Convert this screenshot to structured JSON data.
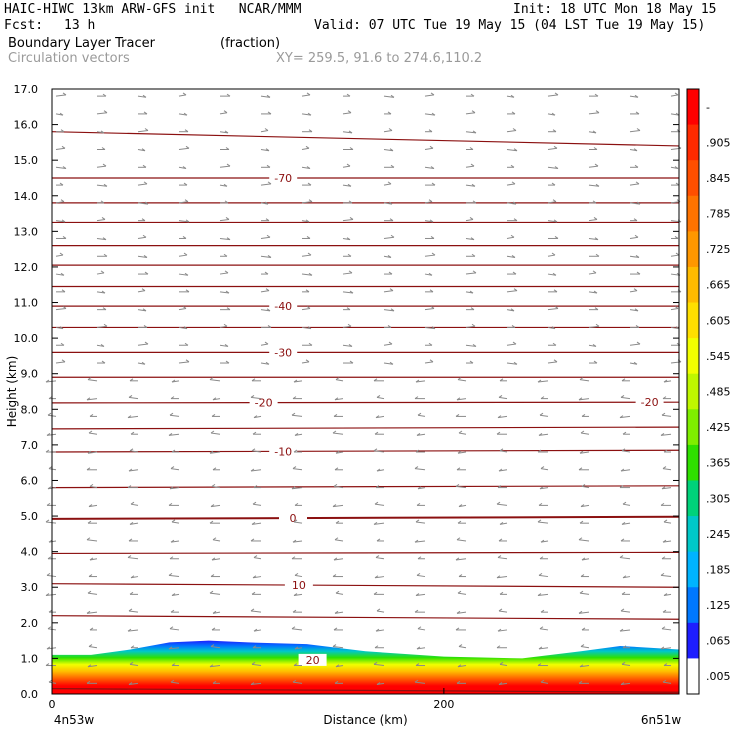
{
  "header": {
    "line1_left": "HAIC-HIWC 13km ARW-GFS init   NCAR/MMM",
    "line1_right": "Init: 18 UTC Mon 18 May 15",
    "fcst_label": "Fcst:",
    "fcst_value": "13 h",
    "valid": "Valid: 07 UTC Tue 19 May 15 (04 LST Tue 19 May 15)",
    "field_name": "Boundary Layer Tracer",
    "field_units": "(fraction)",
    "overlay_name": "Circulation vectors",
    "xy": "XY= 259.5, 91.6 to 274.6,110.2"
  },
  "chart_data": {
    "type": "heatmap",
    "title": "Boundary Layer Tracer",
    "units": "fraction",
    "xlabel": "Distance (km)",
    "ylabel": "Height (km)",
    "xlim": [
      0,
      320
    ],
    "ylim": [
      0.0,
      17.0
    ],
    "x_ticks": [
      0,
      200
    ],
    "x_tick_labels": [
      "0",
      "200"
    ],
    "x_end_labels": [
      "4n53w",
      "6n51w"
    ],
    "y_ticks": [
      "0.0",
      "1.0",
      "2.0",
      "3.0",
      "4.0",
      "5.0",
      "6.0",
      "7.0",
      "8.0",
      "9.0",
      "10.0",
      "11.0",
      "12.0",
      "13.0",
      "14.0",
      "15.0",
      "16.0",
      "17.0"
    ],
    "colorbar": {
      "labels": [
        "-",
        ".905",
        ".845",
        ".785",
        ".725",
        ".665",
        ".605",
        ".545",
        ".485",
        ".425",
        ".365",
        ".305",
        ".245",
        ".185",
        ".125",
        ".065",
        ".005"
      ],
      "colors": [
        "#ff0000",
        "#ff2a00",
        "#ff4f00",
        "#ff7300",
        "#ff9700",
        "#ffbb00",
        "#ffdf00",
        "#f2ff00",
        "#bff700",
        "#7fee00",
        "#2fe000",
        "#00d27a",
        "#00c8c8",
        "#00b4ff",
        "#0078ff",
        "#1e1eff",
        "#ffffff"
      ]
    },
    "tracer_top_km": [
      [
        0,
        1.1
      ],
      [
        20,
        1.1
      ],
      [
        40,
        1.25
      ],
      [
        60,
        1.45
      ],
      [
        80,
        1.5
      ],
      [
        100,
        1.45
      ],
      [
        130,
        1.4
      ],
      [
        160,
        1.2
      ],
      [
        200,
        1.05
      ],
      [
        240,
        1.0
      ],
      [
        270,
        1.2
      ],
      [
        290,
        1.35
      ],
      [
        320,
        1.25
      ]
    ],
    "isotherms": [
      {
        "value": 20,
        "label": "20",
        "height_km": [
          1.0,
          0.9
        ],
        "label_x": 133
      },
      {
        "value": 10,
        "label": "10",
        "height_km": [
          3.1,
          3.0
        ],
        "label_x": 126
      },
      {
        "value": 0,
        "label": "0",
        "height_km": [
          4.92,
          4.98
        ],
        "label_x": 123
      },
      {
        "value": -10,
        "label": "-10",
        "height_km": [
          6.8,
          6.85
        ],
        "label_x": 118
      },
      {
        "value": -20,
        "label": "-20",
        "height_km": [
          8.18,
          8.2
        ],
        "label_x": 108
      },
      {
        "value": -20,
        "label": "-20",
        "height_km": [
          8.18,
          8.2
        ],
        "label_x": 305
      },
      {
        "value": -30,
        "label": "-30",
        "height_km": [
          9.6,
          9.6
        ],
        "label_x": 118
      },
      {
        "value": -40,
        "label": "-40",
        "height_km": [
          10.9,
          10.9
        ],
        "label_x": 118
      },
      {
        "value": -70,
        "label": "-70",
        "height_km": [
          14.5,
          14.5
        ],
        "label_x": 118
      }
    ],
    "contour_lines_km": [
      [
        0.15,
        0.05
      ],
      [
        2.2,
        2.1
      ],
      [
        3.1,
        3.0
      ],
      [
        3.95,
        3.98
      ],
      [
        4.92,
        4.98
      ],
      [
        5.8,
        5.85
      ],
      [
        6.8,
        6.85
      ],
      [
        7.45,
        7.5
      ],
      [
        8.18,
        8.2
      ],
      [
        8.9,
        8.9
      ],
      [
        9.6,
        9.6
      ],
      [
        10.3,
        10.3
      ],
      [
        10.9,
        10.9
      ],
      [
        11.45,
        11.45
      ],
      [
        12.05,
        12.05
      ],
      [
        12.6,
        12.6
      ],
      [
        13.25,
        13.25
      ],
      [
        13.8,
        13.8
      ],
      [
        14.5,
        14.5
      ],
      [
        15.8,
        15.4
      ]
    ]
  }
}
